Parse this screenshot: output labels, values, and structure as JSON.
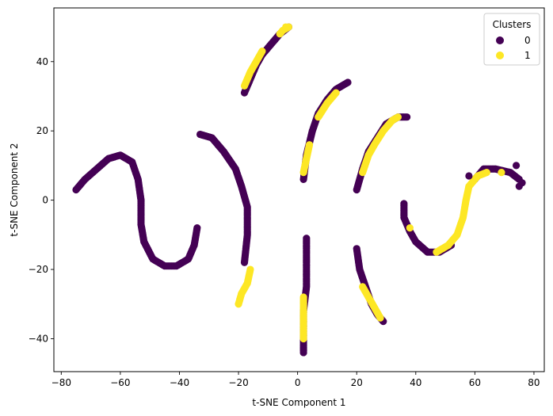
{
  "chart_data": {
    "type": "scatter",
    "title": "",
    "xlabel": "t-SNE Component 1",
    "ylabel": "t-SNE Component 2",
    "xlim": [
      -82.5,
      83.5
    ],
    "ylim": [
      -49.5,
      55.5
    ],
    "xticks": [
      -80,
      -60,
      -40,
      -20,
      0,
      20,
      40,
      60,
      80
    ],
    "yticks": [
      -40,
      -20,
      0,
      20,
      40
    ],
    "grid": false,
    "legend": {
      "title": "Clusters",
      "placement": "top-right",
      "entries": [
        "0",
        "1"
      ]
    },
    "colors": {
      "0": "#440154",
      "1": "#fde725"
    },
    "series": [
      {
        "name": "0",
        "label": "Cluster 0 arcs (polyline traces of dense point bands)",
        "arcs": [
          [
            [
              -75,
              3
            ],
            [
              -72,
              6
            ],
            [
              -68,
              9
            ],
            [
              -64,
              12
            ],
            [
              -60,
              13
            ],
            [
              -56,
              11
            ],
            [
              -54,
              6
            ],
            [
              -53,
              0
            ],
            [
              -53,
              -7
            ],
            [
              -52,
              -12
            ],
            [
              -49,
              -17
            ],
            [
              -45,
              -19
            ],
            [
              -41,
              -19
            ],
            [
              -37,
              -17
            ],
            [
              -35,
              -13
            ],
            [
              -34,
              -8
            ]
          ],
          [
            [
              -33,
              19
            ],
            [
              -29,
              18
            ],
            [
              -25,
              14
            ],
            [
              -21,
              9
            ],
            [
              -19,
              4
            ],
            [
              -17,
              -2
            ],
            [
              -17,
              -10
            ],
            [
              -18,
              -18
            ]
          ],
          [
            [
              -18,
              31
            ],
            [
              -16,
              35
            ],
            [
              -14,
              39
            ],
            [
              -12,
              42
            ],
            [
              -9,
              45
            ],
            [
              -6,
              48
            ],
            [
              -3,
              50
            ]
          ],
          [
            [
              3,
              -11
            ],
            [
              3,
              -18
            ],
            [
              3,
              -25
            ],
            [
              2,
              -32
            ],
            [
              2,
              -38
            ],
            [
              2,
              -44
            ]
          ],
          [
            [
              2,
              6
            ],
            [
              3,
              13
            ],
            [
              5,
              20
            ],
            [
              7,
              25
            ],
            [
              10,
              29
            ],
            [
              13,
              32
            ],
            [
              17,
              34
            ]
          ],
          [
            [
              20,
              -14
            ],
            [
              21,
              -20
            ],
            [
              23,
              -25
            ],
            [
              25,
              -30
            ],
            [
              27,
              -33
            ],
            [
              29,
              -35
            ]
          ],
          [
            [
              20,
              3
            ],
            [
              22,
              9
            ],
            [
              24,
              14
            ],
            [
              27,
              18
            ],
            [
              30,
              22
            ],
            [
              34,
              24
            ],
            [
              37,
              24
            ]
          ],
          [
            [
              36,
              -1
            ],
            [
              36,
              -5
            ],
            [
              38,
              -9
            ],
            [
              40,
              -12
            ],
            [
              44,
              -15
            ],
            [
              48,
              -15
            ],
            [
              52,
              -13
            ]
          ],
          [
            [
              60,
              6
            ],
            [
              63,
              9
            ],
            [
              67,
              9
            ],
            [
              72,
              8
            ],
            [
              75,
              6
            ]
          ]
        ]
      },
      {
        "name": "1",
        "label": "Cluster 1 arc segments",
        "arcs": [
          [
            [
              -20,
              -30
            ],
            [
              -19,
              -27
            ],
            [
              -17,
              -24
            ],
            [
              -16,
              -20
            ]
          ],
          [
            [
              -18,
              33
            ],
            [
              -16,
              37
            ],
            [
              -14,
              40
            ],
            [
              -12,
              43
            ]
          ],
          [
            [
              -6,
              48
            ],
            [
              -5,
              49
            ],
            [
              -3,
              50
            ]
          ],
          [
            [
              2,
              -28
            ],
            [
              2,
              -33
            ],
            [
              2,
              -37
            ],
            [
              2,
              -40
            ]
          ],
          [
            [
              2,
              8
            ],
            [
              3,
              12
            ],
            [
              4,
              16
            ]
          ],
          [
            [
              7,
              24
            ],
            [
              10,
              28
            ],
            [
              13,
              31
            ]
          ],
          [
            [
              22,
              -25
            ],
            [
              24,
              -28
            ],
            [
              26,
              -31
            ],
            [
              28,
              -34
            ]
          ],
          [
            [
              22,
              8
            ],
            [
              24,
              13
            ],
            [
              26,
              16
            ],
            [
              29,
              20
            ],
            [
              32,
              23
            ],
            [
              34,
              24
            ]
          ],
          [
            [
              47,
              -15
            ],
            [
              51,
              -13
            ],
            [
              54,
              -10
            ],
            [
              56,
              -5
            ],
            [
              57,
              0
            ],
            [
              58,
              4
            ],
            [
              61,
              7
            ],
            [
              64,
              8
            ]
          ]
        ]
      }
    ],
    "extra_points": [
      {
        "cluster": "0",
        "x": 74,
        "y": 10
      },
      {
        "cluster": "0",
        "x": 76,
        "y": 5
      },
      {
        "cluster": "0",
        "x": 75,
        "y": 4
      },
      {
        "cluster": "0",
        "x": 58,
        "y": 7
      },
      {
        "cluster": "1",
        "x": 38,
        "y": -8
      },
      {
        "cluster": "1",
        "x": 69,
        "y": 8
      },
      {
        "cluster": "1",
        "x": -4,
        "y": 50
      }
    ]
  }
}
